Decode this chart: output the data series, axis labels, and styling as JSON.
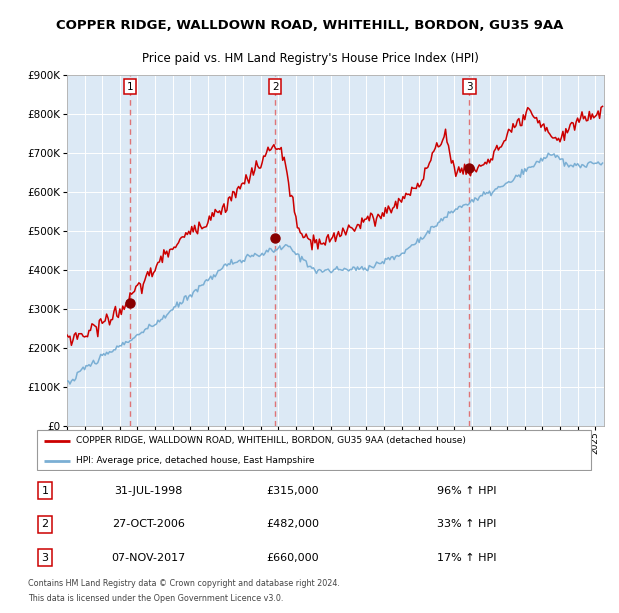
{
  "title": "COPPER RIDGE, WALLDOWN ROAD, WHITEHILL, BORDON, GU35 9AA",
  "subtitle": "Price paid vs. HM Land Registry's House Price Index (HPI)",
  "red_label": "COPPER RIDGE, WALLDOWN ROAD, WHITEHILL, BORDON, GU35 9AA (detached house)",
  "blue_label": "HPI: Average price, detached house, East Hampshire",
  "footer1": "Contains HM Land Registry data © Crown copyright and database right 2024.",
  "footer2": "This data is licensed under the Open Government Licence v3.0.",
  "transactions": [
    {
      "num": 1,
      "date": "31-JUL-1998",
      "year": 1998.58,
      "price": 315000,
      "pct": "96%",
      "dir": "↑"
    },
    {
      "num": 2,
      "date": "27-OCT-2006",
      "year": 2006.82,
      "price": 482000,
      "pct": "33%",
      "dir": "↑"
    },
    {
      "num": 3,
      "date": "07-NOV-2017",
      "year": 2017.85,
      "price": 660000,
      "pct": "17%",
      "dir": "↑"
    }
  ],
  "ylim": [
    0,
    900000
  ],
  "xlim_start": 1995.0,
  "xlim_end": 2025.5,
  "background_color": "#dce9f5",
  "grid_color": "#ffffff",
  "red_color": "#cc0000",
  "blue_color": "#7bafd4",
  "dashed_color": "#e06060",
  "marker_color": "#880000"
}
